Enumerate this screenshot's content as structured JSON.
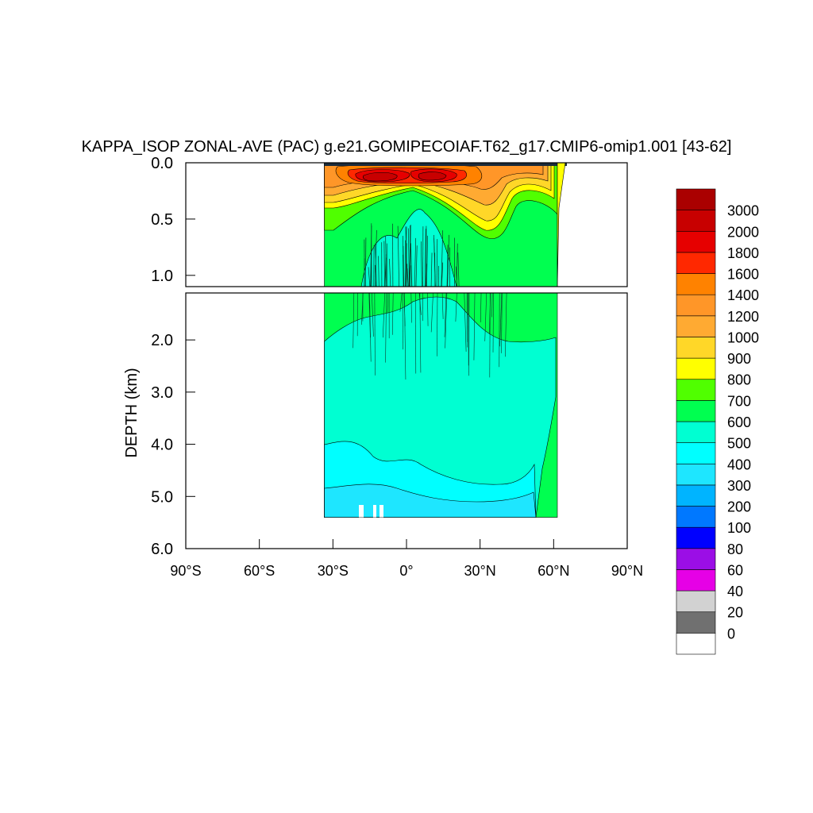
{
  "chart_data": {
    "type": "heatmap",
    "subtype": "filled-contour zonal-average section",
    "title": "KAPPA_ISOP ZONAL-AVE (PAC) g.e21.GOMIPECOIAF.T62_g17.CMIP6-omip1.001 [43-62]",
    "ylabel": "DEPTH (km)",
    "xlabel": "",
    "x_ticks": [
      {
        "value": -90,
        "label": "90°S"
      },
      {
        "value": -60,
        "label": "60°S"
      },
      {
        "value": -30,
        "label": "30°S"
      },
      {
        "value": 0,
        "label": "0°"
      },
      {
        "value": 30,
        "label": "30°N"
      },
      {
        "value": 60,
        "label": "60°N"
      },
      {
        "value": 90,
        "label": "90°N"
      }
    ],
    "xlim": [
      -90,
      90
    ],
    "upper_panel": {
      "ylim": [
        0,
        1.1
      ],
      "y_ticks": [
        {
          "value": 0.0,
          "label": "0.0"
        },
        {
          "value": 0.5,
          "label": "0.5"
        },
        {
          "value": 1.0,
          "label": "1.0"
        }
      ]
    },
    "lower_panel": {
      "ylim": [
        1.1,
        6.0
      ],
      "y_ticks": [
        {
          "value": 2.0,
          "label": "2.0"
        },
        {
          "value": 3.0,
          "label": "3.0"
        },
        {
          "value": 4.0,
          "label": "4.0"
        },
        {
          "value": 5.0,
          "label": "5.0"
        },
        {
          "value": 6.0,
          "label": "6.0"
        }
      ]
    },
    "data_extent": {
      "lat_min": -34,
      "lat_max": 66,
      "max_depth_km": 5.4
    },
    "colorbar": {
      "levels": [
        "0",
        "20",
        "40",
        "60",
        "80",
        "100",
        "200",
        "300",
        "400",
        "500",
        "600",
        "700",
        "800",
        "900",
        "1000",
        "1200",
        "1400",
        "1600",
        "1800",
        "2000",
        "3000"
      ],
      "colors": [
        "#ffffff",
        "#707070",
        "#d2d2d2",
        "#e600e6",
        "#9b0ee6",
        "#0000ff",
        "#0078ff",
        "#00b4ff",
        "#1ee6ff",
        "#00ffff",
        "#00ffd2",
        "#00ff50",
        "#50ff00",
        "#ffff00",
        "#ffd728",
        "#ffaa32",
        "#ff9628",
        "#ff8200",
        "#ff2800",
        "#e60000",
        "#c80000",
        "#aa0000"
      ]
    }
  }
}
